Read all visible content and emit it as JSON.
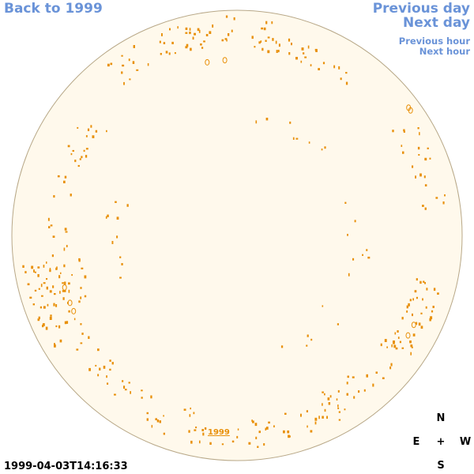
{
  "nav": {
    "back_label": "Back to 1999",
    "prev_day_label": "Previous day",
    "next_day_label": "Next day",
    "prev_hour_label": "Previous hour",
    "next_hour_label": "Next hour"
  },
  "timestamp": "1999-04-03T14:16:33",
  "year_label": "1999",
  "compass": {
    "north": "N",
    "east": "E",
    "center": "+",
    "west": "W",
    "south": "S"
  },
  "colors": {
    "link": "#6a93d8",
    "disk_fill": "#fff9ec",
    "disk_outline": "#b8a888",
    "feature": "#e8900a"
  }
}
